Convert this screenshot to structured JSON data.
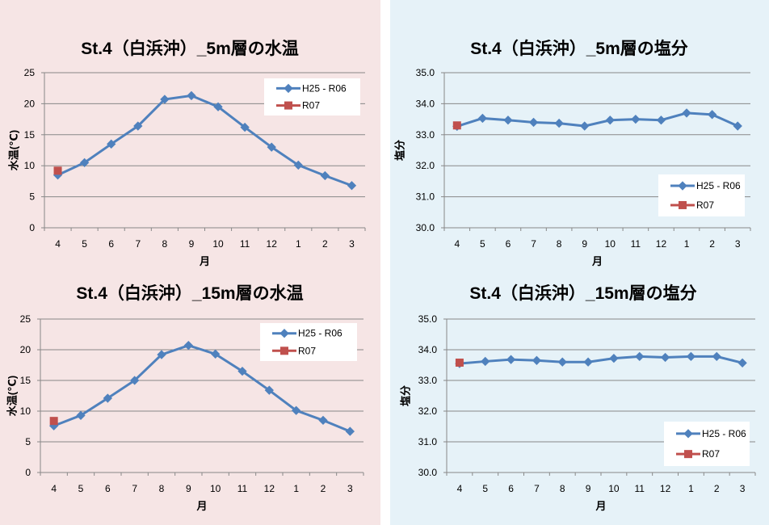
{
  "chart_data": [
    {
      "type": "line",
      "title": "St.4（白浜沖）_5m層の水温",
      "xlabel": "月",
      "ylabel": "水温(℃)",
      "ylim": [
        0,
        25
      ],
      "yticks": [
        "0",
        "5",
        "10",
        "15",
        "20",
        "25"
      ],
      "legend_position": "top-right",
      "categories": [
        "4",
        "5",
        "6",
        "7",
        "8",
        "9",
        "10",
        "11",
        "12",
        "1",
        "2",
        "3"
      ],
      "series": [
        {
          "name": "H25 - R06",
          "color": "#4f81bd",
          "values": [
            8.5,
            10.5,
            13.5,
            16.4,
            20.7,
            21.3,
            19.5,
            16.2,
            13.0,
            10.1,
            8.4,
            6.8
          ]
        },
        {
          "name": "R07",
          "color": "#c0504d",
          "values": [
            9.2,
            null,
            null,
            null,
            null,
            null,
            null,
            null,
            null,
            null,
            null,
            null
          ]
        }
      ]
    },
    {
      "type": "line",
      "title": "St.4（白浜沖）_5m層の塩分",
      "xlabel": "月",
      "ylabel": "塩分",
      "ylim": [
        30,
        35
      ],
      "yticks": [
        "30.0",
        "31.0",
        "32.0",
        "33.0",
        "34.0",
        "35.0"
      ],
      "legend_position": "bottom-right",
      "categories": [
        "4",
        "5",
        "6",
        "7",
        "8",
        "9",
        "10",
        "11",
        "12",
        "1",
        "2",
        "3"
      ],
      "series": [
        {
          "name": "H25 - R06",
          "color": "#4f81bd",
          "values": [
            33.27,
            33.53,
            33.47,
            33.4,
            33.37,
            33.28,
            33.47,
            33.5,
            33.47,
            33.7,
            33.65,
            33.28
          ]
        },
        {
          "name": "R07",
          "color": "#c0504d",
          "values": [
            33.3,
            null,
            null,
            null,
            null,
            null,
            null,
            null,
            null,
            null,
            null,
            null
          ]
        }
      ]
    },
    {
      "type": "line",
      "title": "St.4（白浜沖）_15m層の水温",
      "xlabel": "月",
      "ylabel": "水温(℃)",
      "ylim": [
        0,
        25
      ],
      "yticks": [
        "0",
        "5",
        "10",
        "15",
        "20",
        "25"
      ],
      "legend_position": "top-right",
      "categories": [
        "4",
        "5",
        "6",
        "7",
        "8",
        "9",
        "10",
        "11",
        "12",
        "1",
        "2",
        "3"
      ],
      "series": [
        {
          "name": "H25 - R06",
          "color": "#4f81bd",
          "values": [
            7.6,
            9.3,
            12.1,
            15.0,
            19.2,
            20.7,
            19.3,
            16.5,
            13.4,
            10.1,
            8.5,
            6.7
          ]
        },
        {
          "name": "R07",
          "color": "#c0504d",
          "values": [
            8.4,
            null,
            null,
            null,
            null,
            null,
            null,
            null,
            null,
            null,
            null,
            null
          ]
        }
      ]
    },
    {
      "type": "line",
      "title": "St.4（白浜沖）_15m層の塩分",
      "xlabel": "月",
      "ylabel": "塩分",
      "ylim": [
        30,
        35
      ],
      "yticks": [
        "30.0",
        "31.0",
        "32.0",
        "33.0",
        "34.0",
        "35.0"
      ],
      "legend_position": "bottom-right",
      "categories": [
        "4",
        "5",
        "6",
        "7",
        "8",
        "9",
        "10",
        "11",
        "12",
        "1",
        "2",
        "3"
      ],
      "series": [
        {
          "name": "H25 - R06",
          "color": "#4f81bd",
          "values": [
            33.55,
            33.62,
            33.68,
            33.65,
            33.6,
            33.6,
            33.72,
            33.78,
            33.75,
            33.78,
            33.78,
            33.57
          ]
        },
        {
          "name": "R07",
          "color": "#c0504d",
          "values": [
            33.58,
            null,
            null,
            null,
            null,
            null,
            null,
            null,
            null,
            null,
            null,
            null
          ]
        }
      ]
    }
  ]
}
